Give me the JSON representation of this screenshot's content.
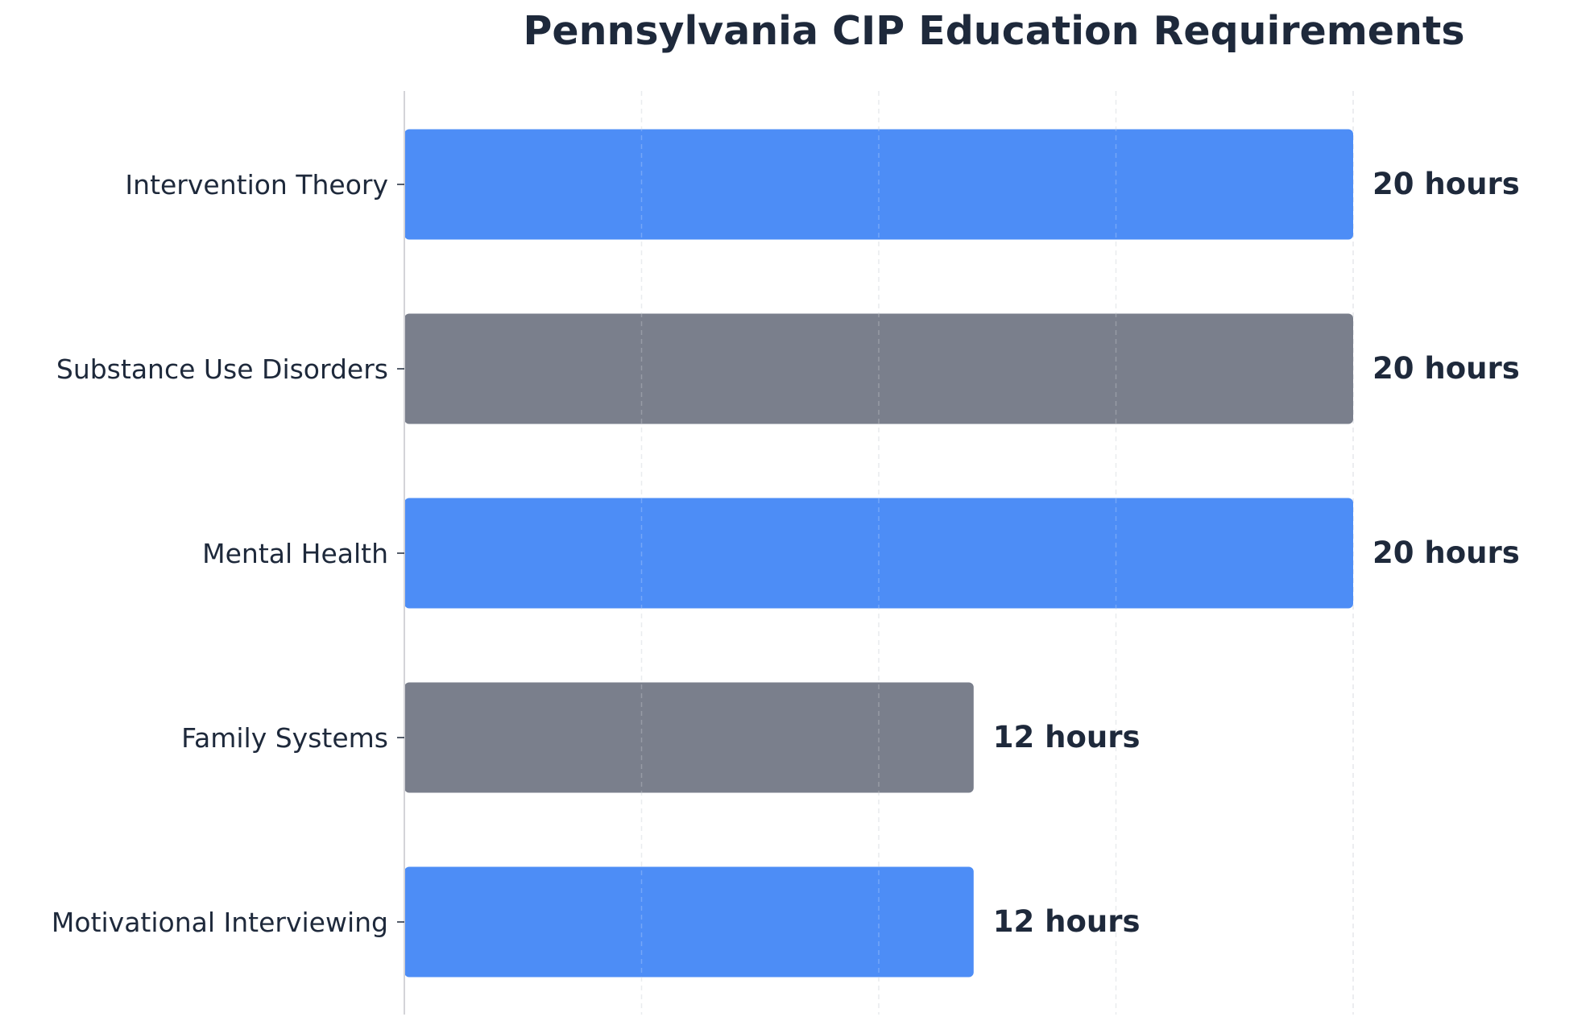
{
  "chart_data": {
    "type": "bar",
    "orientation": "horizontal",
    "title": "Pennsylvania CIP Education Requirements",
    "xlabel": "",
    "ylabel": "",
    "categories": [
      "Intervention Theory",
      "Substance Use Disorders",
      "Mental Health",
      "Family Systems",
      "Motivational Interviewing"
    ],
    "values": [
      20,
      20,
      20,
      12,
      12
    ],
    "value_labels": [
      "20 hours",
      "20 hours",
      "20 hours",
      "12 hours",
      "12 hours"
    ],
    "bar_colors": [
      "#4d8df6",
      "#7a7f8c",
      "#4d8df6",
      "#7a7f8c",
      "#4d8df6"
    ],
    "xlim": [
      0,
      20
    ],
    "grid": true,
    "legend": "none"
  }
}
